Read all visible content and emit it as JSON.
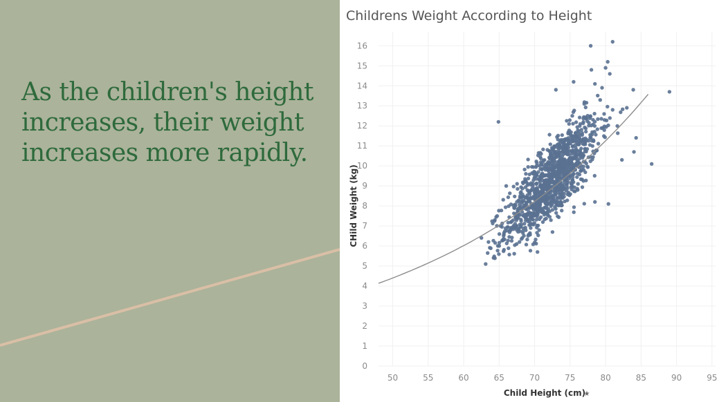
{
  "slide": {
    "headline": "As the children's height increases, their weight increases more rapidly.",
    "background_color": "#abb39a",
    "headline_color": "#2e6a3c",
    "accent_line_color": "#d9bfa6"
  },
  "chart_data": {
    "type": "scatter",
    "title": "Childrens Weight According to Height",
    "xlabel": "Child Height (cm)",
    "ylabel": "CHild Weight (kg)",
    "xlim": [
      48,
      95.5
    ],
    "ylim": [
      0,
      16.7
    ],
    "x_ticks": [
      50,
      55,
      60,
      65,
      70,
      75,
      80,
      85,
      90,
      95
    ],
    "y_ticks": [
      0,
      1,
      2,
      3,
      4,
      5,
      6,
      7,
      8,
      9,
      10,
      11,
      12,
      13,
      14,
      15,
      16
    ],
    "grid": true,
    "point_color": "#5a7191",
    "trend_line": {
      "type": "exponential",
      "a": 0.92,
      "b": 0.0313,
      "x_range": [
        48,
        86
      ],
      "color": "#8c8c8c"
    },
    "cloud": {
      "n": 1200,
      "center_x": 72.5,
      "center_y": 9.3,
      "sd_x": 3.3,
      "slope": 0.37,
      "sd_resid": 0.95
    },
    "points": [
      [
        62.5,
        6.4
      ],
      [
        63.1,
        5.1
      ],
      [
        63.5,
        6.2
      ],
      [
        64.9,
        12.2
      ],
      [
        66.0,
        9.0
      ],
      [
        70.4,
        5.7
      ],
      [
        73.0,
        13.8
      ],
      [
        75.5,
        14.2
      ],
      [
        77.0,
        13.1
      ],
      [
        77.9,
        16.0
      ],
      [
        78.0,
        14.8
      ],
      [
        78.5,
        14.1
      ],
      [
        79.5,
        13.9
      ],
      [
        80.0,
        14.9
      ],
      [
        80.3,
        15.2
      ],
      [
        80.6,
        14.6
      ],
      [
        81.0,
        16.2
      ],
      [
        81.0,
        12.8
      ],
      [
        83.0,
        12.9
      ],
      [
        83.9,
        13.8
      ],
      [
        84.3,
        11.4
      ],
      [
        84.0,
        10.7
      ],
      [
        82.3,
        10.3
      ],
      [
        80.4,
        8.1
      ],
      [
        78.5,
        8.2
      ],
      [
        89.0,
        13.7
      ],
      [
        86.5,
        10.1
      ],
      [
        65.2,
        7.0
      ],
      [
        64.4,
        7.3
      ],
      [
        79.6,
        11.9
      ]
    ]
  }
}
